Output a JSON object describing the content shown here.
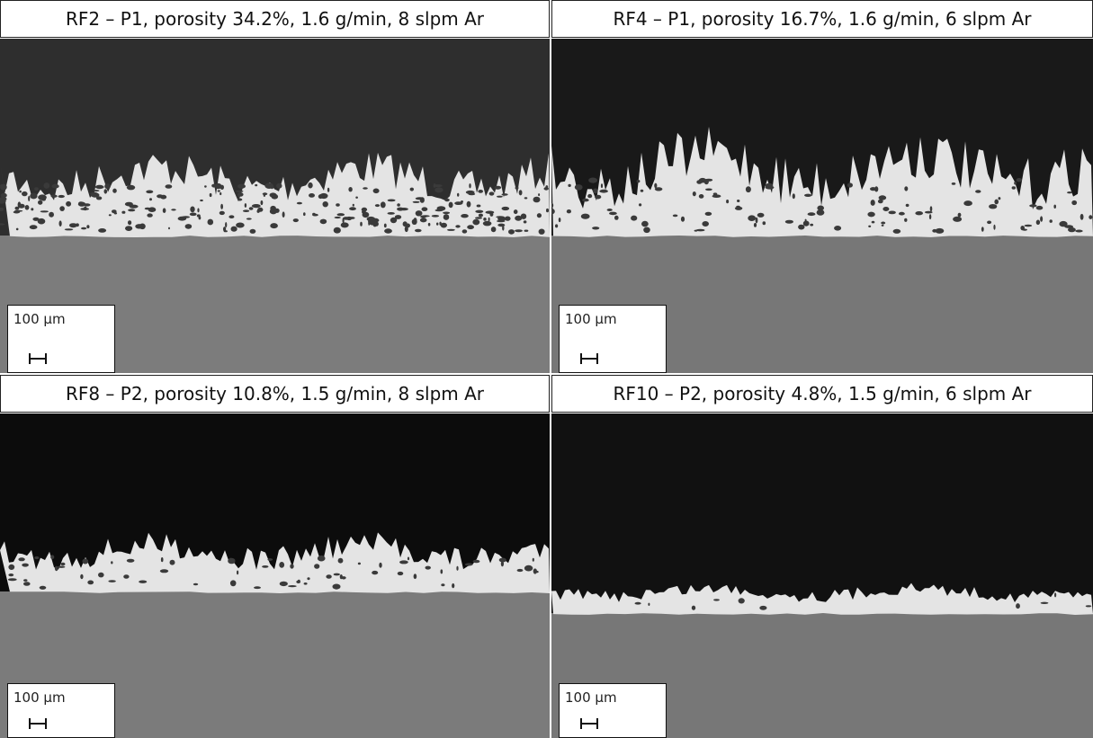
{
  "panels": [
    {
      "caption": "RF2 – P1, porosity 34.2%, 1.6 g/min, 8 slpm Ar",
      "scale_bar": "100 µm"
    },
    {
      "caption": "RF4 – P1, porosity 16.7%, 1.6 g/min, 6 slpm Ar",
      "scale_bar": "100 µm"
    },
    {
      "caption": "RF8 – P2, porosity 10.8%, 1.5 g/min, 8 slpm Ar",
      "scale_bar": "100 µm"
    },
    {
      "caption": "RF10 – P2, porosity 4.8%, 1.5 g/min, 6 slpm Ar",
      "scale_bar": "100 µm"
    }
  ]
}
